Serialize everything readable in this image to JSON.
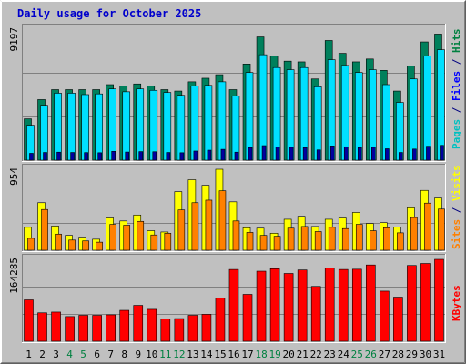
{
  "title": "Daily usage for October 2025",
  "colors": {
    "frame_bg": "#c0c0c0",
    "plot_bg": "#c0c0c0",
    "title": "#0000cc",
    "hits": "#00805c",
    "files": "#00e0ff",
    "pages": "#0000a0",
    "visits": "#ffff00",
    "sites": "#ff8000",
    "kbytes": "#ff0000",
    "weekend": "#008040"
  },
  "chart_data": [
    {
      "type": "bar",
      "ylabel_max": "9197",
      "ymax": 9197,
      "legend": [
        {
          "text": "Pages",
          "color": "#00c0c0"
        },
        {
          "text": " / ",
          "color": "#000080"
        },
        {
          "text": "Files",
          "color": "#0000ff"
        },
        {
          "text": " / ",
          "color": "#000080"
        },
        {
          "text": "Hits",
          "color": "#008040"
        }
      ],
      "series": [
        {
          "name": "Hits",
          "values": [
            2900,
            4250,
            4950,
            4950,
            4950,
            4950,
            5300,
            5200,
            5350,
            5200,
            4950,
            4850,
            5500,
            5750,
            6000,
            4950,
            6750,
            8650,
            7300,
            6950,
            6900,
            5700,
            8400,
            7500,
            6900,
            7100,
            6300,
            4850,
            6600,
            8300,
            8850
          ]
        },
        {
          "name": "Files",
          "values": [
            2450,
            3850,
            4700,
            4700,
            4600,
            4650,
            5000,
            4800,
            5000,
            4900,
            4750,
            4550,
            5200,
            5250,
            5500,
            4500,
            6150,
            7400,
            6500,
            6350,
            6500,
            5150,
            7050,
            6650,
            6150,
            6350,
            5300,
            4050,
            5700,
            7300,
            7750
          ]
        },
        {
          "name": "Pages",
          "values": [
            480,
            540,
            560,
            540,
            530,
            520,
            620,
            570,
            600,
            590,
            540,
            520,
            640,
            700,
            760,
            560,
            880,
            1020,
            920,
            900,
            880,
            720,
            1000,
            940,
            880,
            900,
            800,
            540,
            780,
            980,
            1040
          ]
        }
      ]
    },
    {
      "type": "bar",
      "ylabel_max": "954",
      "ymax": 954,
      "legend": [
        {
          "text": "Sites",
          "color": "#ff8000"
        },
        {
          "text": " / ",
          "color": "#000080"
        },
        {
          "text": "Visits",
          "color": "#ffff00"
        }
      ],
      "series": [
        {
          "name": "Visits",
          "values": [
            270,
            560,
            285,
            175,
            155,
            130,
            380,
            345,
            415,
            230,
            215,
            690,
            830,
            765,
            954,
            570,
            265,
            260,
            200,
            365,
            400,
            280,
            365,
            380,
            445,
            315,
            325,
            275,
            500,
            705,
            615
          ]
        },
        {
          "name": "Sites",
          "values": [
            140,
            480,
            190,
            120,
            110,
            95,
            305,
            295,
            340,
            180,
            200,
            475,
            560,
            590,
            700,
            345,
            210,
            175,
            165,
            260,
            280,
            220,
            270,
            255,
            305,
            230,
            265,
            205,
            385,
            555,
            485
          ]
        }
      ]
    },
    {
      "type": "bar",
      "ylabel_max": "164285",
      "ymax": 164285,
      "legend": [
        {
          "text": "KBytes",
          "color": "#ff0000"
        }
      ],
      "series": [
        {
          "name": "KBytes",
          "values": [
            83000,
            57000,
            58500,
            49500,
            52000,
            52000,
            53000,
            62000,
            72000,
            64000,
            45000,
            45500,
            52000,
            54000,
            87000,
            144000,
            94000,
            140500,
            145500,
            136000,
            143000,
            110000,
            147000,
            144000,
            144500,
            153000,
            100500,
            88500,
            152000,
            156000,
            164285
          ]
        }
      ]
    }
  ],
  "days": [
    "1",
    "2",
    "3",
    "4",
    "5",
    "6",
    "7",
    "8",
    "9",
    "10",
    "11",
    "12",
    "13",
    "14",
    "15",
    "16",
    "17",
    "18",
    "19",
    "20",
    "21",
    "22",
    "23",
    "24",
    "25",
    "26",
    "27",
    "28",
    "29",
    "30",
    "31"
  ],
  "weekend_days": [
    4,
    5,
    11,
    12,
    18,
    19,
    25,
    26
  ]
}
